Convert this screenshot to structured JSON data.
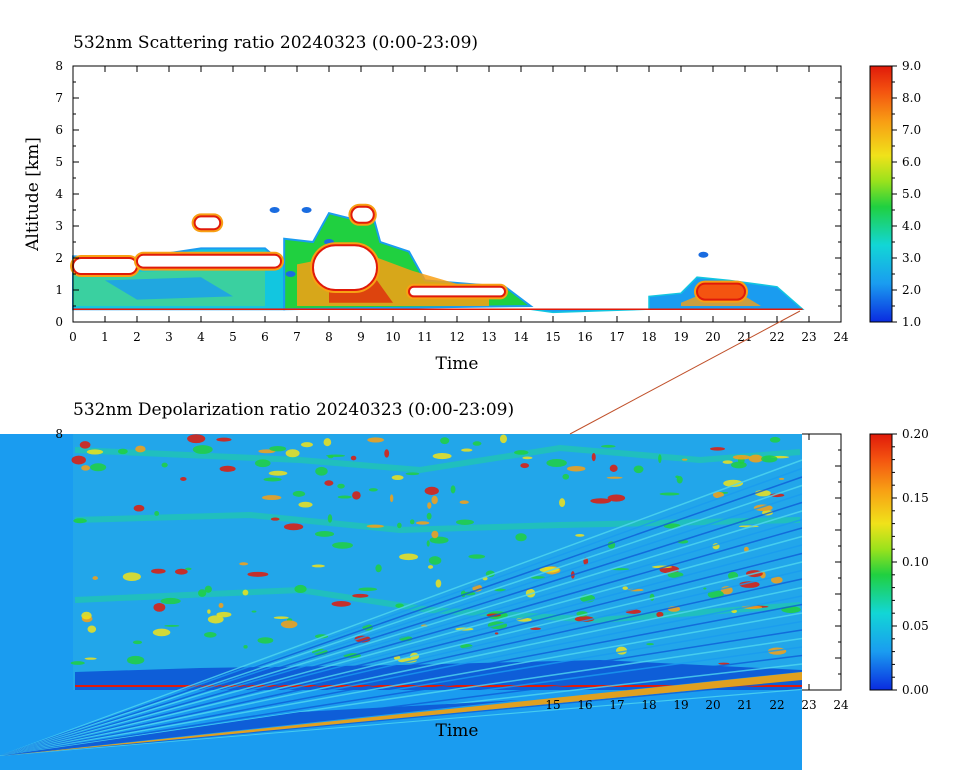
{
  "chart_data": [
    {
      "type": "heatmap",
      "title": "532nm Scattering ratio  20240323 (0:00-23:09)",
      "xlabel": "Time",
      "ylabel": "Altitude [km]",
      "xlim": [
        0,
        24
      ],
      "ylim": [
        0,
        8
      ],
      "x_ticks": [
        0,
        1,
        2,
        3,
        4,
        5,
        6,
        7,
        8,
        9,
        10,
        11,
        12,
        13,
        14,
        15,
        16,
        17,
        18,
        19,
        20,
        21,
        22,
        23,
        24
      ],
      "y_ticks": [
        0,
        1,
        2,
        3,
        4,
        5,
        6,
        7,
        8
      ],
      "colorbar": {
        "min": 1.0,
        "max": 9.0,
        "ticks": [
          "1.0",
          "2.0",
          "3.0",
          "4.0",
          "5.0",
          "6.0",
          "7.0",
          "8.0",
          "9.0"
        ]
      },
      "cloud_layers": [
        {
          "x": [
            0,
            2
          ],
          "y": [
            1.5,
            2.0
          ],
          "level": "high"
        },
        {
          "x": [
            2,
            6.5
          ],
          "y": [
            1.7,
            2.1
          ],
          "level": "high"
        },
        {
          "x": [
            3.8,
            4.6
          ],
          "y": [
            2.9,
            3.3
          ],
          "level": "high"
        },
        {
          "x": [
            7.5,
            9.5
          ],
          "y": [
            1.0,
            2.4
          ],
          "level": "high"
        },
        {
          "x": [
            8.7,
            9.4
          ],
          "y": [
            3.1,
            3.6
          ],
          "level": "high"
        },
        {
          "x": [
            10.5,
            13.5
          ],
          "y": [
            0.8,
            1.1
          ],
          "level": "high"
        },
        {
          "x": [
            19.5,
            21.0
          ],
          "y": [
            0.7,
            1.2
          ],
          "level": "medium"
        }
      ]
    },
    {
      "type": "heatmap",
      "title": "532nm Depolarization ratio  20240323 (0:00-23:09)",
      "xlabel": "Time",
      "ylabel": "",
      "xlim": [
        0,
        24
      ],
      "ylim": [
        0,
        8
      ],
      "x_ticks_visible": [
        15,
        16,
        17,
        18,
        19,
        20,
        21,
        22,
        23,
        24
      ],
      "y_ticks_visible": [
        8
      ],
      "colorbar": {
        "min": 0.0,
        "max": 0.2,
        "ticks": [
          "0.00",
          "0.05",
          "0.10",
          "0.15",
          "0.20"
        ]
      }
    }
  ]
}
